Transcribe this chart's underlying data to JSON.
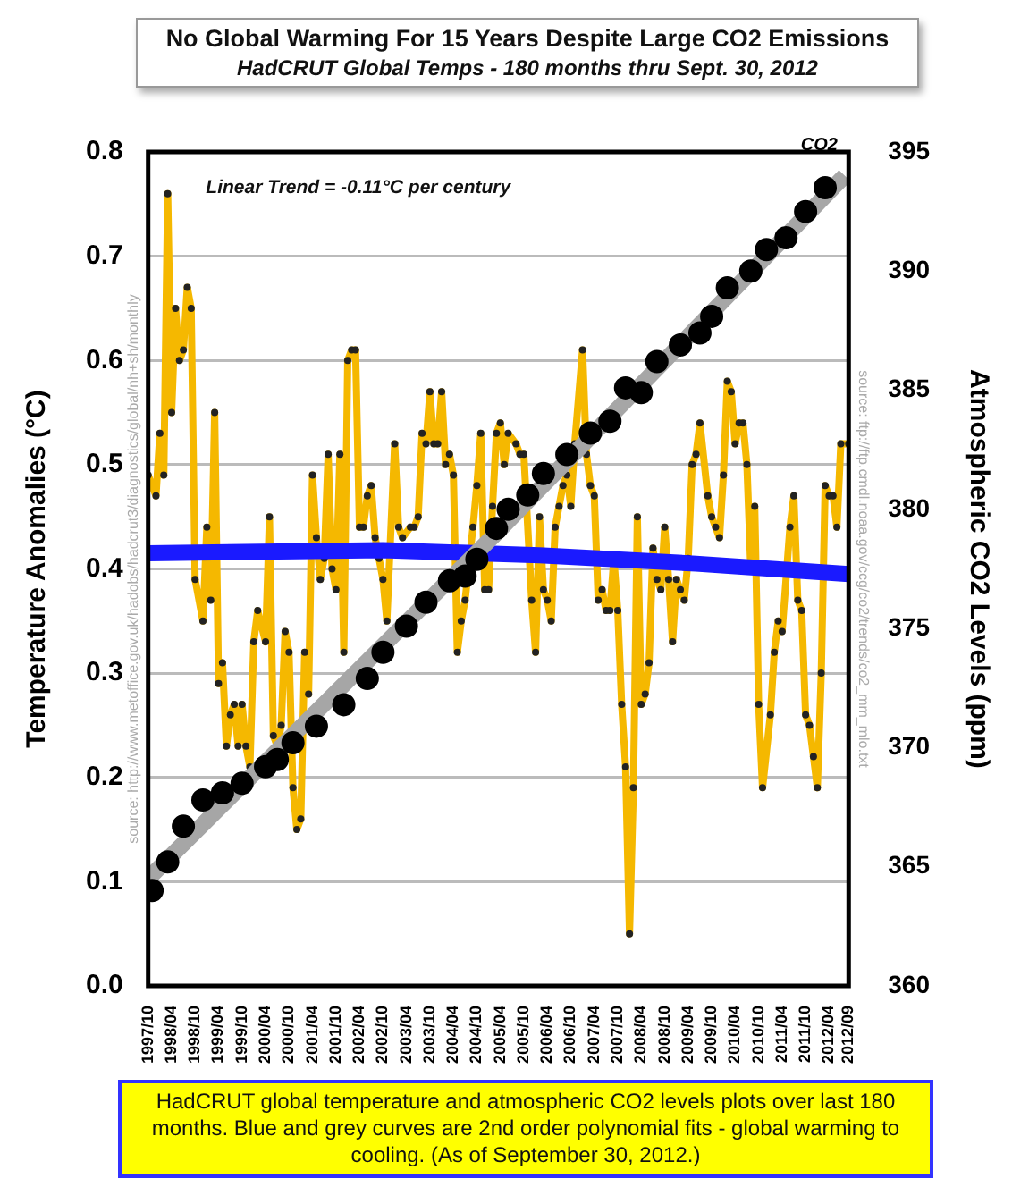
{
  "chart_data": {
    "type": "line",
    "title": "No Global Warming For 15 Years Despite Large CO2 Emissions",
    "subtitle": "HadCRUT Global Temps - 180 months thru Sept. 30, 2012",
    "ylabel": "Temperature Anomalies (°C)",
    "y2label": "Atmospheric CO2 Levels (ppm)",
    "xlim": [
      "1997-10",
      "2012-09"
    ],
    "xticks": [
      {
        "value": "1997-10",
        "label": "1997/10"
      },
      {
        "value": "1998-04",
        "label": "1998/04"
      },
      {
        "value": "1998-10",
        "label": "1998/10"
      },
      {
        "value": "1999-04",
        "label": "1999/04"
      },
      {
        "value": "1999-10",
        "label": "1999/10"
      },
      {
        "value": "2000-04",
        "label": "2000/04"
      },
      {
        "value": "2000-10",
        "label": "2000/10"
      },
      {
        "value": "2001-04",
        "label": "2001/04"
      },
      {
        "value": "2001-10",
        "label": "2001/10"
      },
      {
        "value": "2002-04",
        "label": "2002/04"
      },
      {
        "value": "2002-10",
        "label": "2002/10"
      },
      {
        "value": "2003-04",
        "label": "2003/04"
      },
      {
        "value": "2003-10",
        "label": "2003/10"
      },
      {
        "value": "2004-04",
        "label": "2004/04"
      },
      {
        "value": "2004-10",
        "label": "2004/10"
      },
      {
        "value": "2005-04",
        "label": "2005/04"
      },
      {
        "value": "2005-10",
        "label": "2005/10"
      },
      {
        "value": "2006-04",
        "label": "2006/04"
      },
      {
        "value": "2006-10",
        "label": "2006/10"
      },
      {
        "value": "2007-04",
        "label": "2007/04"
      },
      {
        "value": "2007-10",
        "label": "2007/10"
      },
      {
        "value": "2008-04",
        "label": "2008/04"
      },
      {
        "value": "2008-10",
        "label": "2008/10"
      },
      {
        "value": "2009-04",
        "label": "2009/04"
      },
      {
        "value": "2009-10",
        "label": "2009/10"
      },
      {
        "value": "2010-04",
        "label": "2010/04"
      },
      {
        "value": "2010-10",
        "label": "2010/10"
      },
      {
        "value": "2011-04",
        "label": "2011/04"
      },
      {
        "value": "2011-10",
        "label": "2011/10"
      },
      {
        "value": "2012-04",
        "label": "2012/04"
      },
      {
        "value": "2012-09",
        "label": "2012/09"
      }
    ],
    "ylim": [
      0,
      0.8
    ],
    "yticks": [
      {
        "value": 0,
        "label": "0.0"
      },
      {
        "value": 0.1,
        "label": "0.1"
      },
      {
        "value": 0.2,
        "label": "0.2"
      },
      {
        "value": 0.3,
        "label": "0.3"
      },
      {
        "value": 0.4,
        "label": "0.4"
      },
      {
        "value": 0.5,
        "label": "0.5"
      },
      {
        "value": 0.6,
        "label": "0.6"
      },
      {
        "value": 0.7,
        "label": "0.7"
      },
      {
        "value": 0.8,
        "label": "0.8"
      }
    ],
    "y2lim": [
      360,
      395
    ],
    "y2ticks": [
      360,
      365,
      370,
      375,
      380,
      385,
      390,
      395
    ],
    "grid": "y",
    "legend": false,
    "marker": "circle",
    "series": [
      {
        "color": "#f5b800",
        "x": [
          "1997-10",
          "1997-12",
          "1998-01",
          "1998-02",
          "1998-03",
          "1998-04",
          "1998-05",
          "1998-06",
          "1998-07",
          "1998-08",
          "1998-09",
          "1998-10",
          "1998-12",
          "1999-01",
          "1999-02",
          "1999-03",
          "1999-04",
          "1999-05",
          "1999-06",
          "1999-07",
          "1999-08",
          "1999-09",
          "1999-10",
          "1999-11",
          "1999-12",
          "2000-01",
          "2000-02",
          "2000-04",
          "2000-05",
          "2000-06",
          "2000-07",
          "2000-08",
          "2000-09",
          "2000-10",
          "2000-11",
          "2000-12",
          "2001-01",
          "2001-02",
          "2001-03",
          "2001-04",
          "2001-05",
          "2001-06",
          "2001-07",
          "2001-08",
          "2001-09",
          "2001-10",
          "2001-11",
          "2001-12",
          "2002-01",
          "2002-02",
          "2002-03",
          "2002-04",
          "2002-05",
          "2002-06",
          "2002-07",
          "2002-08",
          "2002-09",
          "2002-10",
          "2002-11",
          "2003-01",
          "2003-02",
          "2003-03",
          "2003-05",
          "2003-06",
          "2003-07",
          "2003-08",
          "2003-09",
          "2003-10",
          "2003-11",
          "2003-12",
          "2004-01",
          "2004-02",
          "2004-03",
          "2004-04",
          "2004-05",
          "2004-06",
          "2004-07",
          "2004-09",
          "2004-10",
          "2004-11",
          "2004-12",
          "2005-01",
          "2005-02",
          "2005-03",
          "2005-04",
          "2005-05",
          "2005-06",
          "2005-08",
          "2005-09",
          "2005-10",
          "2005-12",
          "2006-01",
          "2006-02",
          "2006-03",
          "2006-04",
          "2006-05",
          "2006-06",
          "2006-07",
          "2006-08",
          "2006-09",
          "2006-10",
          "2006-11",
          "2007-01",
          "2007-02",
          "2007-03",
          "2007-04",
          "2007-05",
          "2007-06",
          "2007-07",
          "2007-08",
          "2007-09",
          "2007-10",
          "2007-11",
          "2007-12",
          "2008-01",
          "2008-02",
          "2008-03",
          "2008-04",
          "2008-05",
          "2008-06",
          "2008-07",
          "2008-08",
          "2008-09",
          "2008-10",
          "2008-11",
          "2008-12",
          "2009-01",
          "2009-02",
          "2009-03",
          "2009-04",
          "2009-05",
          "2009-06",
          "2009-07",
          "2009-09",
          "2009-10",
          "2009-11",
          "2009-12",
          "2010-01",
          "2010-02",
          "2010-03",
          "2010-04",
          "2010-05",
          "2010-06",
          "2010-07",
          "2010-08",
          "2010-09",
          "2010-10",
          "2010-11",
          "2011-01",
          "2011-02",
          "2011-03",
          "2011-04",
          "2011-06",
          "2011-07",
          "2011-08",
          "2011-09",
          "2011-10",
          "2011-11",
          "2011-12",
          "2012-01",
          "2012-02",
          "2012-03",
          "2012-04",
          "2012-05",
          "2012-06",
          "2012-07",
          "2012-09"
        ],
        "values": [
          0.49,
          0.47,
          0.53,
          0.49,
          0.76,
          0.55,
          0.65,
          0.6,
          0.61,
          0.67,
          0.65,
          0.39,
          0.35,
          0.44,
          0.37,
          0.55,
          0.29,
          0.31,
          0.23,
          0.26,
          0.27,
          0.23,
          0.27,
          0.23,
          0.21,
          0.33,
          0.36,
          0.33,
          0.45,
          0.24,
          0.23,
          0.25,
          0.34,
          0.32,
          0.19,
          0.15,
          0.16,
          0.32,
          0.28,
          0.49,
          0.43,
          0.39,
          0.41,
          0.51,
          0.4,
          0.38,
          0.51,
          0.32,
          0.6,
          0.61,
          0.61,
          0.44,
          0.44,
          0.47,
          0.48,
          0.43,
          0.41,
          0.39,
          0.35,
          0.52,
          0.44,
          0.43,
          0.44,
          0.44,
          0.45,
          0.53,
          0.52,
          0.57,
          0.52,
          0.52,
          0.57,
          0.5,
          0.51,
          0.49,
          0.32,
          0.35,
          0.37,
          0.44,
          0.48,
          0.53,
          0.38,
          0.38,
          0.46,
          0.53,
          0.54,
          0.5,
          0.53,
          0.52,
          0.51,
          0.51,
          0.37,
          0.32,
          0.45,
          0.38,
          0.37,
          0.35,
          0.44,
          0.46,
          0.48,
          0.49,
          0.46,
          0.52,
          0.61,
          0.51,
          0.48,
          0.47,
          0.37,
          0.38,
          0.36,
          0.36,
          0.41,
          0.36,
          0.27,
          0.21,
          0.05,
          0.19,
          0.45,
          0.27,
          0.28,
          0.31,
          0.42,
          0.39,
          0.38,
          0.44,
          0.39,
          0.33,
          0.39,
          0.38,
          0.37,
          0.41,
          0.5,
          0.51,
          0.54,
          0.47,
          0.45,
          0.44,
          0.43,
          0.49,
          0.58,
          0.57,
          0.52,
          0.54,
          0.54,
          0.5,
          0.4,
          0.46,
          0.27,
          0.19,
          0.26,
          0.32,
          0.35,
          0.34,
          0.44,
          0.47,
          0.37,
          0.36,
          0.26,
          0.25,
          0.22,
          0.19,
          0.3,
          0.48,
          0.47,
          0.47,
          0.44,
          0.52,
          0.52
        ]
      },
      {
        "type": "line",
        "color": "#1a1aff",
        "marker": "none",
        "x": [
          "1997-10",
          "2002-10",
          "2006-02",
          "2009-06",
          "2012-09"
        ],
        "values": [
          0.415,
          0.418,
          0.413,
          0.405,
          0.395
        ]
      },
      {
        "type": "line",
        "name": "CO2",
        "color": "#a6a6a6",
        "marker": "none",
        "axis": "y2",
        "x": [
          "1997-10",
          "2005-03",
          "2012-08"
        ],
        "values": [
          364.5,
          379.0,
          394.0
        ]
      },
      {
        "type": "scatter",
        "color": "#000000",
        "axis": "y2",
        "x": [
          "1997-11",
          "1998-03",
          "1998-07",
          "1998-12",
          "1999-05",
          "1999-10",
          "2000-04",
          "2000-07",
          "2000-11",
          "2001-05",
          "2001-12",
          "2002-06",
          "2002-10",
          "2003-04",
          "2003-09",
          "2004-03",
          "2004-07",
          "2004-10",
          "2005-03",
          "2005-06",
          "2005-11",
          "2006-03",
          "2006-09",
          "2007-03",
          "2007-08",
          "2007-12",
          "2008-04",
          "2008-08",
          "2009-02",
          "2009-07",
          "2009-10",
          "2010-02",
          "2010-08",
          "2010-12",
          "2011-05",
          "2011-10",
          "2012-03"
        ],
        "values": [
          364.0,
          365.2,
          366.7,
          367.8,
          368.1,
          368.5,
          369.2,
          369.5,
          370.2,
          370.9,
          371.8,
          372.9,
          374.0,
          375.1,
          376.1,
          377.0,
          377.2,
          377.9,
          379.2,
          380.0,
          380.6,
          381.5,
          382.3,
          383.2,
          383.7,
          385.1,
          384.9,
          386.2,
          386.9,
          387.4,
          388.1,
          389.3,
          390.0,
          390.9,
          391.4,
          392.5,
          393.5
        ]
      }
    ],
    "annotations": [
      "Linear Trend = -0.11°C per century",
      "source: http://www.metoffice.gov.uk/hadobs/hadcrut3/diagnostics/global/nh+sh/monthly",
      "source: ftp://ftp.cmdl.noaa.gov/ccg/co2/trends/co2_mm_mlo.txt",
      "HadCRUT global temperature and atmospheric CO2 levels plots over last 180 months. Blue and grey curves are 2nd order polynomial fits - global warming to cooling. (As of September 30, 2012.)"
    ]
  }
}
